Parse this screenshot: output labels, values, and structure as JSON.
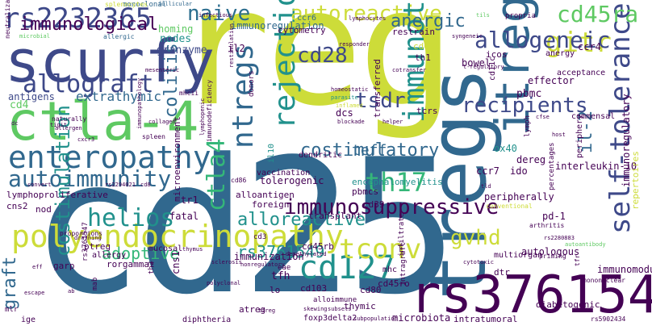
{
  "palette": {
    "dark_purple": "#440154",
    "indigo": "#3b528b",
    "steel": "#2c6e8f",
    "teal": "#21918c",
    "green": "#35b779",
    "lime": "#5ec962",
    "yellow": "#cddc39",
    "bright_yellow": "#d9e21b"
  },
  "words": [
    {
      "text": "cd25"
    },
    {
      "text": "reg"
    },
    {
      "text": "tregs"
    },
    {
      "text": "scurfy"
    },
    {
      "text": "rs3761548"
    },
    {
      "text": "ctla-4"
    },
    {
      "text": "itreg"
    },
    {
      "text": "rs2232365"
    },
    {
      "text": "enteropathy"
    },
    {
      "text": "polyendocrinopathy"
    },
    {
      "text": "self-tolerance"
    },
    {
      "text": "allograft"
    },
    {
      "text": "ntregs"
    },
    {
      "text": "immunosuppressive"
    },
    {
      "text": "rejection"
    },
    {
      "text": "cd127"
    },
    {
      "text": "autoimmunity"
    },
    {
      "text": "gitr"
    },
    {
      "text": "tcon"
    },
    {
      "text": "tconv"
    },
    {
      "text": "allogeneic"
    },
    {
      "text": "autoreactive"
    },
    {
      "text": "naive"
    },
    {
      "text": "cd45ra"
    },
    {
      "text": "immunological"
    },
    {
      "text": "cd28"
    },
    {
      "text": "tsdr"
    },
    {
      "text": "immunotherapy"
    },
    {
      "text": "recipients"
    },
    {
      "text": "il-2"
    },
    {
      "text": "ctla4"
    },
    {
      "text": "costimulatory"
    },
    {
      "text": "teff"
    },
    {
      "text": "th17"
    },
    {
      "text": "helios"
    },
    {
      "text": "gvhd"
    },
    {
      "text": "costimulation"
    },
    {
      "text": "adoptive"
    },
    {
      "text": "alloreactive"
    },
    {
      "text": "graft"
    },
    {
      "text": "rs3761549"
    },
    {
      "text": "anergic"
    },
    {
      "text": "extrathymic"
    },
    {
      "text": "antigens"
    },
    {
      "text": "cd4"
    },
    {
      "text": "colitis"
    },
    {
      "text": "homing"
    },
    {
      "text": "nodes"
    },
    {
      "text": "granzyme"
    },
    {
      "text": "immunoregulation"
    },
    {
      "text": "infectious"
    },
    {
      "text": "monoclonal"
    },
    {
      "text": "follicular"
    },
    {
      "text": "splenocytes"
    },
    {
      "text": "neutralization"
    },
    {
      "text": "microbial"
    },
    {
      "text": "allergic"
    },
    {
      "text": "il2"
    },
    {
      "text": "cytometry"
    },
    {
      "text": "ccr6"
    },
    {
      "text": "lymphocytes"
    },
    {
      "text": "propria"
    },
    {
      "text": "restrain"
    },
    {
      "text": "responder"
    },
    {
      "text": "syngeneic"
    },
    {
      "text": "tils"
    },
    {
      "text": "cd62l"
    },
    {
      "text": "th1"
    },
    {
      "text": "bowel"
    },
    {
      "text": "icos"
    },
    {
      "text": "ccr4"
    },
    {
      "text": "anergy"
    },
    {
      "text": "effector"
    },
    {
      "text": "pbmc"
    },
    {
      "text": "commensal"
    },
    {
      "text": "ox40"
    },
    {
      "text": "dereg"
    },
    {
      "text": "ccr7"
    },
    {
      "text": "ido"
    },
    {
      "text": "interleukin-10"
    },
    {
      "text": "periphery"
    },
    {
      "text": "peripherally"
    },
    {
      "text": "immunoregulatory"
    },
    {
      "text": "repertoires"
    },
    {
      "text": "percentages"
    },
    {
      "text": "conventional"
    },
    {
      "text": "pd-1"
    },
    {
      "text": "arthritis"
    },
    {
      "text": "autoantibody"
    },
    {
      "text": "tfr"
    },
    {
      "text": "autologous"
    },
    {
      "text": "immunomodulatory"
    },
    {
      "text": "mononuclear"
    },
    {
      "text": "diabetogenic"
    },
    {
      "text": "rs5902434"
    },
    {
      "text": "dtr"
    },
    {
      "text": "priming"
    },
    {
      "text": "multiorgan"
    },
    {
      "text": "intragraft"
    },
    {
      "text": "infiltrate"
    },
    {
      "text": "cd45ro"
    },
    {
      "text": "microbiota"
    },
    {
      "text": "intratumoral"
    },
    {
      "text": "foxp3delta2"
    },
    {
      "text": "subpopulation"
    },
    {
      "text": "subsets"
    },
    {
      "text": "skewing"
    },
    {
      "text": "ttreg"
    },
    {
      "text": "atreg"
    },
    {
      "text": "alloimmune"
    },
    {
      "text": "thymic"
    },
    {
      "text": "cd103"
    },
    {
      "text": "cd80"
    },
    {
      "text": "lo"
    },
    {
      "text": "mhc"
    },
    {
      "text": "cytotoxic"
    },
    {
      "text": "rs2280883"
    },
    {
      "text": "cd39"
    },
    {
      "text": "pbmcs"
    },
    {
      "text": "cd3"
    },
    {
      "text": "cd45rb"
    },
    {
      "text": "demethylated"
    },
    {
      "text": "alloantigen"
    },
    {
      "text": "foreign"
    },
    {
      "text": "transplant"
    },
    {
      "text": "tolerogenic"
    },
    {
      "text": "il10"
    },
    {
      "text": "cd86"
    },
    {
      "text": "dendritic"
    },
    {
      "text": "vaccination"
    },
    {
      "text": "encephalomyelitis"
    },
    {
      "text": "tfh"
    },
    {
      "text": "eae"
    },
    {
      "text": "immunization"
    },
    {
      "text": "nonregulatory"
    },
    {
      "text": "sclerosis"
    },
    {
      "text": "polyclonal"
    },
    {
      "text": "cns1"
    },
    {
      "text": "mucosal"
    },
    {
      "text": "thymus"
    },
    {
      "text": "ptreg"
    },
    {
      "text": "rs3761547"
    },
    {
      "text": "th2"
    },
    {
      "text": "rorgammat"
    },
    {
      "text": "allergy"
    },
    {
      "text": "garp"
    },
    {
      "text": "mab"
    },
    {
      "text": "diphtheria"
    },
    {
      "text": "ige"
    },
    {
      "text": "mlr"
    },
    {
      "text": "escape"
    },
    {
      "text": "ab"
    },
    {
      "text": "eff"
    },
    {
      "text": "proportions"
    },
    {
      "text": "draining"
    },
    {
      "text": "fatal"
    },
    {
      "text": "tr1"
    },
    {
      "text": "nod"
    },
    {
      "text": "cns2"
    },
    {
      "text": "lymphoproliferative"
    },
    {
      "text": "convert"
    },
    {
      "text": "rs2294021"
    },
    {
      "text": "cd8"
    },
    {
      "text": "microenvironment"
    },
    {
      "text": "cxcr3"
    },
    {
      "text": "allergen"
    },
    {
      "text": "naturally"
    },
    {
      "text": "dc"
    },
    {
      "text": "tigit"
    },
    {
      "text": "mesenteric"
    },
    {
      "text": "spleen"
    },
    {
      "text": "collagen"
    },
    {
      "text": "immunopathology"
    },
    {
      "text": "immunodeficiency"
    },
    {
      "text": "lymphopenic"
    },
    {
      "text": "donors"
    },
    {
      "text": "mhcii"
    },
    {
      "text": "restimulation"
    },
    {
      "text": "cotransfer"
    },
    {
      "text": "t-regulatory"
    },
    {
      "text": "homeostatic"
    },
    {
      "text": "parasite"
    },
    {
      "text": "inflamed"
    },
    {
      "text": "blockade"
    },
    {
      "text": "helper"
    },
    {
      "text": "transferred"
    },
    {
      "text": "dcs"
    },
    {
      "text": "tcrs"
    },
    {
      "text": "cd11c"
    },
    {
      "text": "acceptance"
    },
    {
      "text": "cfse"
    },
    {
      "text": "tld"
    },
    {
      "text": "lymph"
    },
    {
      "text": "host"
    }
  ]
}
